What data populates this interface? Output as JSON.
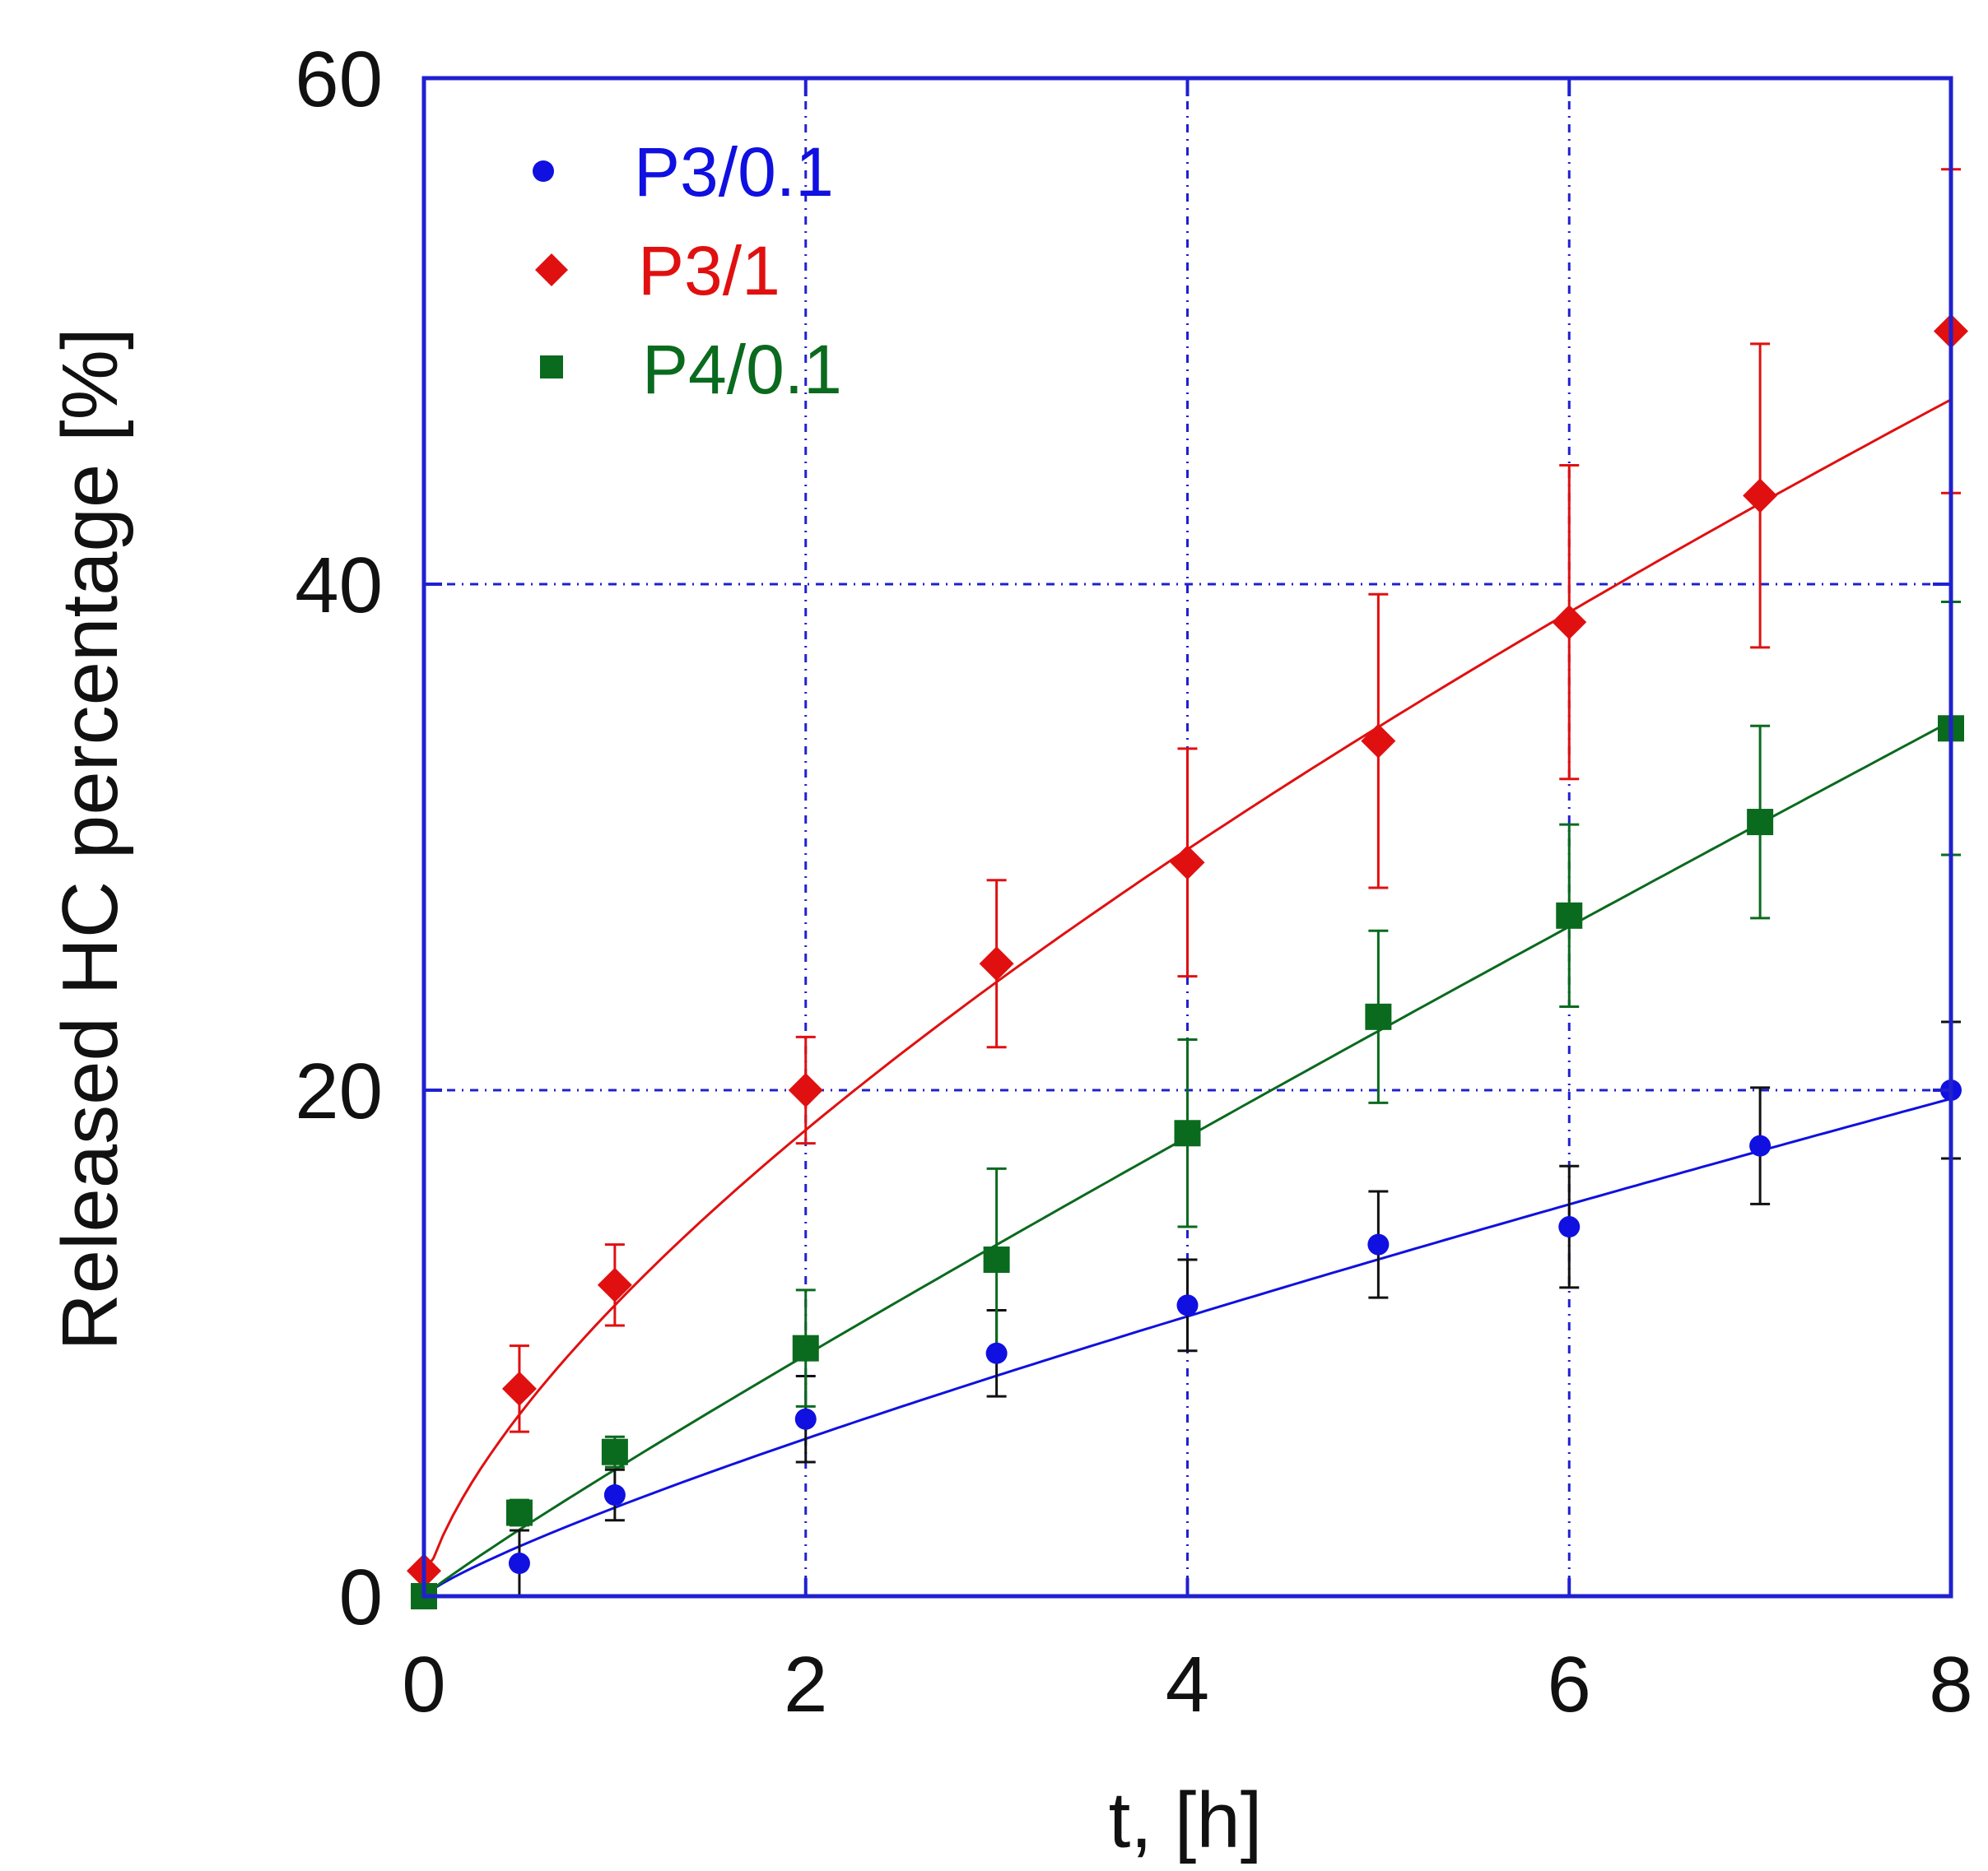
{
  "chart_data": {
    "type": "scatter",
    "title": "",
    "xlabel": "t, [h]",
    "ylabel": "Released HC percentage [%]",
    "xlim": [
      0,
      8
    ],
    "ylim": [
      0,
      60
    ],
    "xticks": [
      0,
      2,
      4,
      6,
      8
    ],
    "yticks": [
      0,
      20,
      40,
      60
    ],
    "xtick_labels": [
      "0",
      "2",
      "4",
      "6",
      "8"
    ],
    "ytick_labels": [
      "0",
      "20",
      "40",
      "60"
    ],
    "grid": true,
    "legend_position": "top-left",
    "colors": {
      "axis": "#2020d0",
      "grid": "#2020d0",
      "text": "#111111"
    },
    "series": [
      {
        "name": "P3/0.1",
        "color": "#1010e0",
        "error_color": "#111111",
        "marker": "circle",
        "x": [
          0,
          0.5,
          1,
          2,
          3,
          4,
          5,
          6,
          7,
          8
        ],
        "y": [
          0,
          1.3,
          4.0,
          7.0,
          9.6,
          11.5,
          13.9,
          14.6,
          17.8,
          20.0
        ],
        "err": [
          0,
          1.3,
          1.0,
          1.7,
          1.7,
          1.8,
          2.1,
          2.4,
          2.3,
          2.7
        ],
        "fit": {
          "a": 3.5,
          "n": 0.83
        }
      },
      {
        "name": "P3/1",
        "color": "#e01010",
        "error_color": "#e01010",
        "marker": "diamond",
        "x": [
          0,
          0.5,
          1,
          2,
          3,
          4,
          5,
          6,
          7,
          8
        ],
        "y": [
          1.0,
          8.2,
          12.3,
          20.0,
          25.0,
          29.0,
          33.8,
          38.5,
          43.5,
          50.0
        ],
        "err": [
          0,
          1.7,
          1.6,
          2.1,
          3.3,
          4.5,
          5.8,
          6.2,
          6.0,
          6.4
        ],
        "fit": {
          "a": 11.5,
          "n": 0.68
        }
      },
      {
        "name": "P4/0.1",
        "color": "#0a6a1e",
        "error_color": "#0a6a1e",
        "marker": "square",
        "x": [
          0,
          0.5,
          1,
          2,
          3,
          4,
          5,
          6,
          7,
          8
        ],
        "y": [
          0,
          3.3,
          5.7,
          9.8,
          13.3,
          18.3,
          22.9,
          26.9,
          30.6,
          34.3
        ],
        "err": [
          0,
          0.5,
          0.6,
          2.3,
          3.6,
          3.7,
          3.4,
          3.6,
          3.8,
          5.0
        ],
        "fit": {
          "a": 5.0,
          "n": 0.93
        }
      }
    ]
  }
}
